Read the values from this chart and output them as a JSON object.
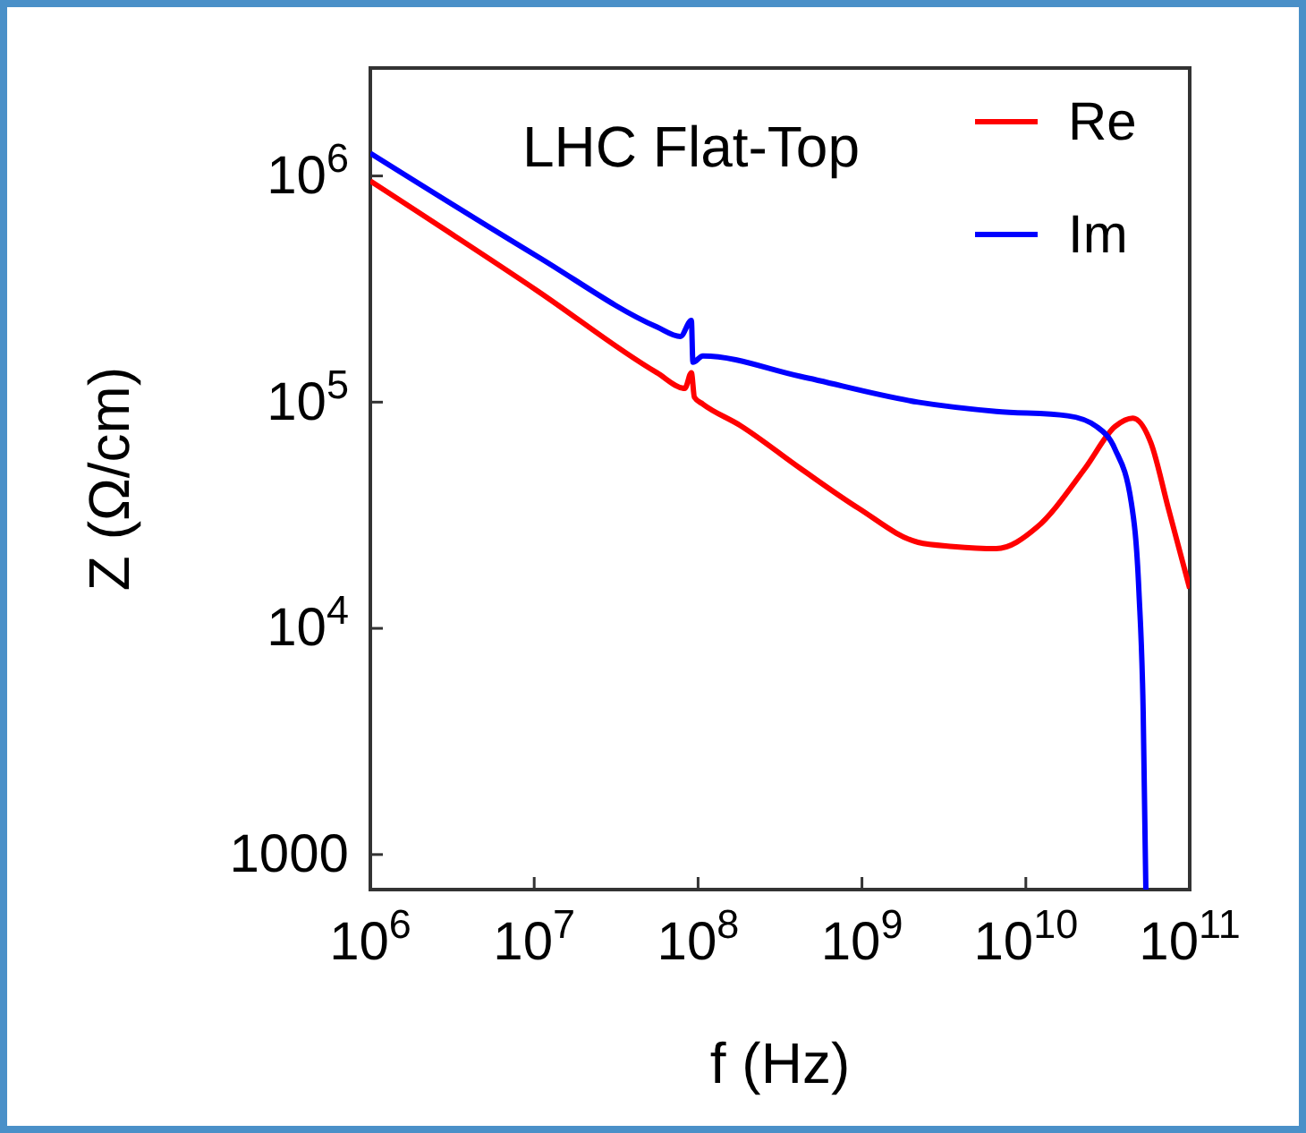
{
  "chart_data": {
    "type": "line",
    "title": "LHC Flat-Top",
    "xlabel": "f (Hz)",
    "ylabel": "Z (Ω/cm)",
    "log": "xy",
    "legend": "top right",
    "grid": false,
    "xlim": [
      1000000,
      100000000000
    ],
    "xticks": [
      {
        "value": 1000000,
        "label": "10$^{6}$"
      },
      {
        "value": 10000000,
        "label": "10$^{7}$"
      },
      {
        "value": 100000000,
        "label": "10$^{8}$"
      },
      {
        "value": 1000000000,
        "label": "10$^{9}$"
      },
      {
        "value": 10000000000,
        "label": "10$^{10}$"
      },
      {
        "value": 100000000000,
        "label": "10$^{11}$"
      }
    ],
    "ylim": [
      700,
      3000000
    ],
    "yticks": [
      1000,
      {
        "value": 10000,
        "label": "10$^{4}$"
      },
      {
        "value": 100000,
        "label": "10$^{5}$"
      },
      {
        "value": 1000000,
        "label": "10$^{6}$"
      }
    ],
    "series": [
      {
        "name": "Re",
        "color": "#ff0000",
        "x": [
          1000000.0,
          10500000.0,
          56000000.0,
          83000000.0,
          91000000.0,
          95000000.0,
          107000000.0,
          180000000.0,
          420000000.0,
          950000000.0,
          2200000000.0,
          3600000000.0,
          6600000000.0,
          11700000000.0,
          23000000000.0,
          35000000000.0,
          45000000000.0,
          58000000000.0,
          74000000000.0,
          100000000000.0
        ],
        "values": [
          950000,
          310000,
          135000,
          115000,
          135000,
          105000,
          98000,
          79000,
          51000,
          34000,
          24000,
          23000,
          22500,
          28000,
          51000,
          78000,
          85000,
          66000,
          34000,
          15000
        ]
      },
      {
        "name": "Im",
        "color": "#0000ff",
        "x": [
          1000000.0,
          10500000.0,
          56000000.0,
          78000000.0,
          91000000.0,
          93000000.0,
          107000000.0,
          420000000.0,
          2200000000.0,
          6600000000.0,
          18000000000.0,
          27000000000.0,
          35000000000.0,
          44000000000.0,
          49000000000.0,
          52000000000.0,
          54000000000.0
        ],
        "values": [
          1260000,
          440000,
          215000,
          195000,
          230000,
          150000,
          160000,
          130000,
          100000,
          91000,
          87000,
          78000,
          62000,
          36000,
          14500,
          4300,
          700
        ]
      }
    ]
  }
}
